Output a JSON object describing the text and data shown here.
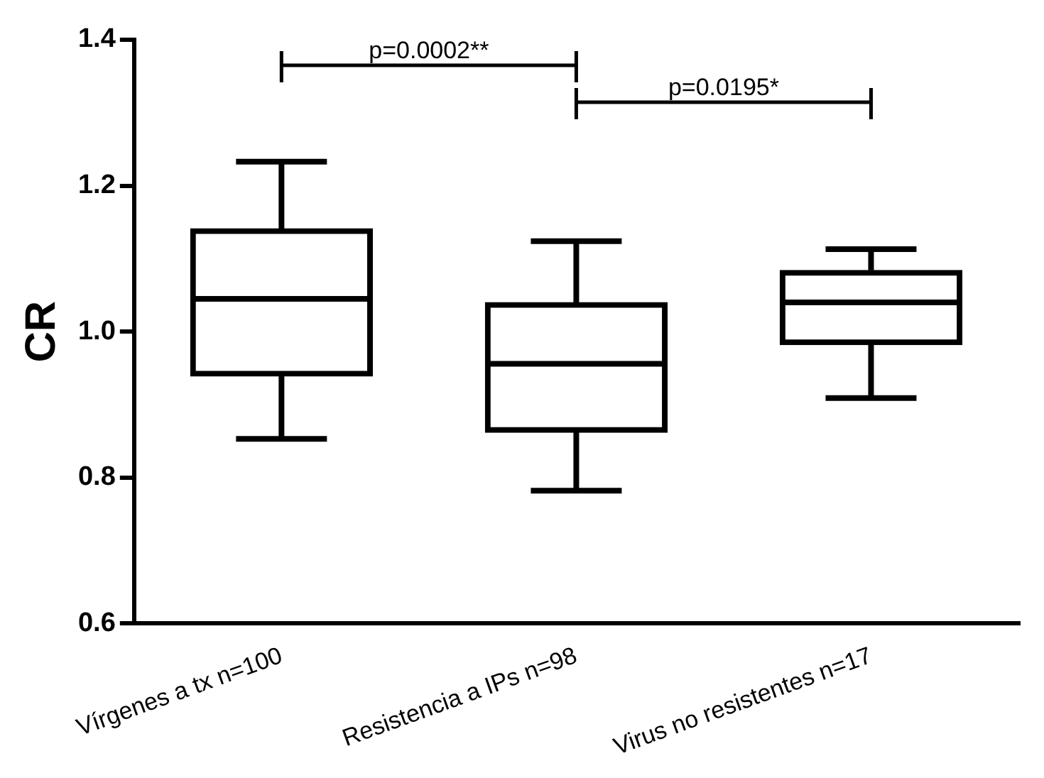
{
  "chart_data": {
    "type": "box",
    "ylabel": "CR",
    "categories": [
      "Vírgenes a tx n=100",
      "Resistencia a IPs n=98",
      "Virus no resistentes n=17"
    ],
    "boxes": [
      {
        "low": 0.853,
        "q1": 0.939,
        "median": 1.045,
        "q3": 1.141,
        "high": 1.233
      },
      {
        "low": 0.782,
        "q1": 0.862,
        "median": 0.956,
        "q3": 1.04,
        "high": 1.124
      },
      {
        "low": 0.909,
        "q1": 0.982,
        "median": 1.04,
        "q3": 1.084,
        "high": 1.113
      }
    ],
    "color": "#000000",
    "ylim": [
      0.6,
      1.4
    ],
    "yticks": [
      0.6,
      0.8,
      {
        "value": 1,
        "label": "1.0"
      },
      1.2,
      1.4
    ],
    "grid": false,
    "legend": false,
    "annotations": [
      "p=0.0002**",
      "p=0.0195*"
    ]
  }
}
